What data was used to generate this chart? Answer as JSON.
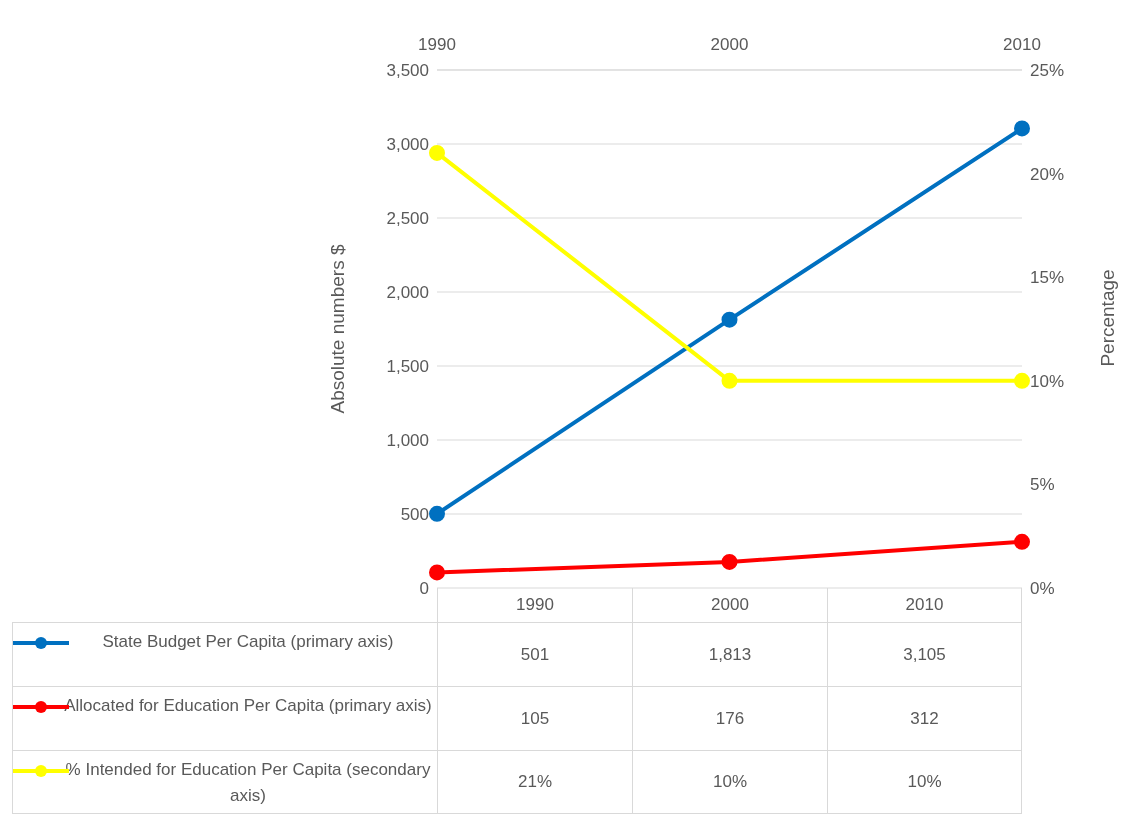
{
  "chart_data": {
    "type": "line",
    "ylabel": "Absolute numbers $",
    "y2label": "Percentage",
    "categories": [
      "1990",
      "2000",
      "2010"
    ],
    "series": [
      {
        "name": "State Budget Per Capita (primary axis)",
        "color": "#0070c0",
        "values": [
          501,
          1813,
          3105
        ],
        "value_labels": [
          "501",
          "1,813",
          "3,105"
        ]
      },
      {
        "name": "Allocated for Education Per Capita (primary axis)",
        "color": "#ff0000",
        "values": [
          105,
          176,
          312
        ],
        "value_labels": [
          "105",
          "176",
          "312"
        ]
      },
      {
        "name": "% Intended for Education Per Capita (secondary axis)",
        "color": "#ffff00",
        "axis": "y2",
        "values": [
          21,
          10,
          10
        ],
        "value_labels": [
          "21%",
          "10%",
          "10%"
        ]
      }
    ],
    "ylim": [
      0,
      3500
    ],
    "yticks": [
      0,
      {
        "value": 500,
        "label": "500"
      },
      {
        "value": 1000,
        "label": "1,000"
      },
      {
        "value": 1500,
        "label": "1,500"
      },
      {
        "value": 2000,
        "label": "2,000"
      },
      {
        "value": 2500,
        "label": "2,500"
      },
      {
        "value": 3000,
        "label": "3,000"
      },
      {
        "value": 3500,
        "label": "3,500"
      }
    ],
    "y2lim": [
      0,
      25
    ],
    "y2ticks": [
      {
        "value": 0,
        "label": "0%"
      },
      {
        "value": 5,
        "label": "5%"
      },
      {
        "value": 10,
        "label": "10%"
      },
      {
        "value": 15,
        "label": "15%"
      },
      {
        "value": 20,
        "label": "20%"
      },
      {
        "value": 25,
        "label": "25%"
      }
    ],
    "grid": "y",
    "legend": "bottom",
    "marker": "circle",
    "line_style": "solid"
  }
}
